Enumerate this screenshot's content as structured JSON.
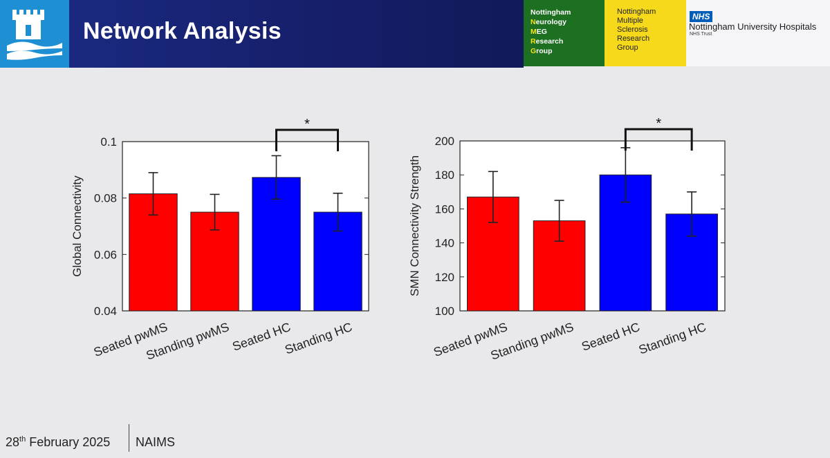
{
  "header": {
    "title": "Network Analysis",
    "nnmrg": {
      "lines": [
        {
          "cap": "",
          "rest": "Nottingham"
        },
        {
          "cap": "N",
          "rest": "eurology"
        },
        {
          "cap": "M",
          "rest": "EG"
        },
        {
          "cap": "R",
          "rest": "esearch"
        },
        {
          "cap": "G",
          "rest": "roup"
        }
      ]
    },
    "nmsrg": {
      "lines": [
        "Nottingham",
        "Multiple",
        "Sclerosis",
        "Research",
        "Group"
      ]
    },
    "nhs": {
      "badge": "NHS",
      "name": "Nottingham University Hospitals",
      "trust": "NHS Trust"
    }
  },
  "footer": {
    "date_day": "28",
    "date_suffix": "th",
    "date_rest": " February 2025",
    "event": "NAIMS"
  },
  "colors": {
    "ms": "#ff0000",
    "hc": "#0000ff"
  },
  "chart_data": [
    {
      "type": "bar",
      "ylabel": "Global Connectivity",
      "categories": [
        "Seated pwMS",
        "Standing pwMS",
        "Seated HC",
        "Standing HC"
      ],
      "values": [
        0.0815,
        0.075,
        0.0873,
        0.075
      ],
      "errors": [
        0.0075,
        0.0063,
        0.0077,
        0.0067
      ],
      "ylim": [
        0.04,
        0.1
      ],
      "yticks": [
        "0.04",
        "0.06",
        "0.08",
        "0.1"
      ],
      "significance": {
        "between": [
          2,
          3
        ],
        "label": "*"
      }
    },
    {
      "type": "bar",
      "ylabel": "SMN Connectivity Strength",
      "categories": [
        "Seated pwMS",
        "Standing pwMS",
        "Seated HC",
        "Standing HC"
      ],
      "values": [
        167,
        153,
        180,
        157
      ],
      "errors": [
        15,
        12,
        16,
        13
      ],
      "ylim": [
        100,
        200
      ],
      "yticks": [
        "100",
        "120",
        "140",
        "160",
        "180",
        "200"
      ],
      "significance": {
        "between": [
          2,
          3
        ],
        "label": "*"
      }
    }
  ]
}
